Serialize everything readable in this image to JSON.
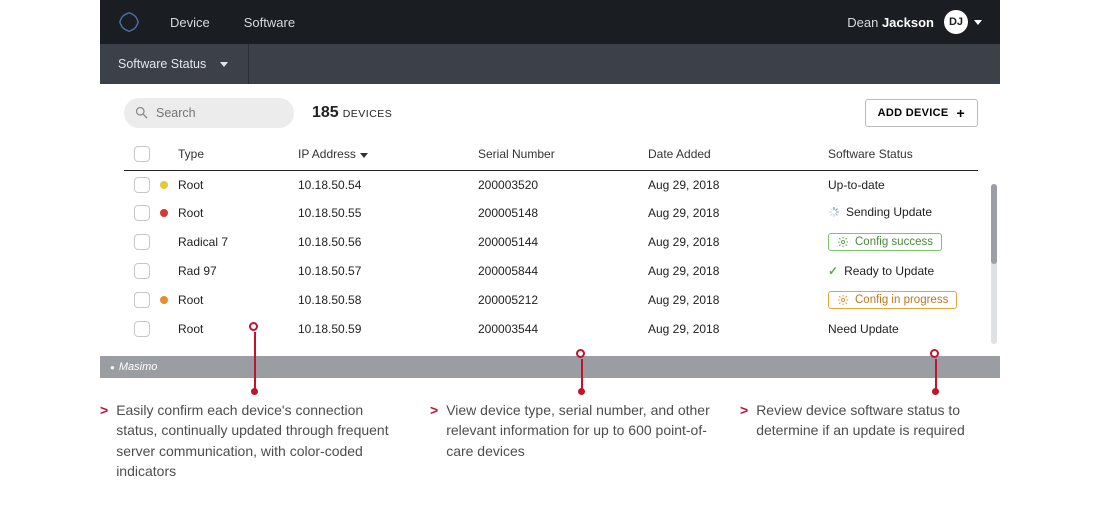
{
  "colors": {
    "nav_bg": "#1a1d21",
    "subnav_bg": "#3c4049",
    "accent_red": "#c1122f",
    "pill_green": "#7bc46a",
    "pill_orange": "#e4a53a",
    "footer_bg": "#9a9da2"
  },
  "nav": {
    "device": "Device",
    "software": "Software",
    "user_first": "Dean",
    "user_last": "Jackson",
    "avatar_initials": "DJ"
  },
  "subnav": {
    "label": "Software Status"
  },
  "toolbar": {
    "search_placeholder": "Search",
    "device_count": "185",
    "device_count_label": "DEVICES",
    "add_device": "ADD DEVICE"
  },
  "columns": {
    "type": "Type",
    "ip": "IP Address",
    "serial": "Serial Number",
    "date": "Date Added",
    "sw": "Software Status"
  },
  "status_dot_colors": {
    "yellow": "#e7c732",
    "red": "#d63a2f",
    "orange": "#e98c2a"
  },
  "status_labels": {
    "uptodate": "Up-to-date",
    "sending": "Sending Update",
    "config_success": "Config success",
    "ready": "Ready to Update",
    "config_progress": "Config in progress",
    "need_update": "Need Update"
  },
  "rows": [
    {
      "dot": "yellow",
      "type": "Root",
      "ip": "10.18.50.54",
      "serial": "200003520",
      "date": "Aug 29, 2018",
      "status": "uptodate"
    },
    {
      "dot": "red",
      "type": "Root",
      "ip": "10.18.50.55",
      "serial": "200005148",
      "date": "Aug 29, 2018",
      "status": "sending"
    },
    {
      "dot": "",
      "type": "Radical 7",
      "ip": "10.18.50.56",
      "serial": "200005144",
      "date": "Aug 29, 2018",
      "status": "config_success"
    },
    {
      "dot": "",
      "type": "Rad 97",
      "ip": "10.18.50.57",
      "serial": "200005844",
      "date": "Aug 29, 2018",
      "status": "ready"
    },
    {
      "dot": "orange",
      "type": "Root",
      "ip": "10.18.50.58",
      "serial": "200005212",
      "date": "Aug 29, 2018",
      "status": "config_progress"
    },
    {
      "dot": "",
      "type": "Root",
      "ip": "10.18.50.59",
      "serial": "200003544",
      "date": "Aug 29, 2018",
      "status": "need_update"
    }
  ],
  "footer_brand": "Masimo",
  "callouts": {
    "c1": "Easily confirm each device's connection status, continually updated through frequent server communication, with color-coded indicators",
    "c2": "View device type, serial number, and other relevant information for up to 600 point-of-care devices",
    "c3": "Review device software status to determine if an update is required"
  }
}
